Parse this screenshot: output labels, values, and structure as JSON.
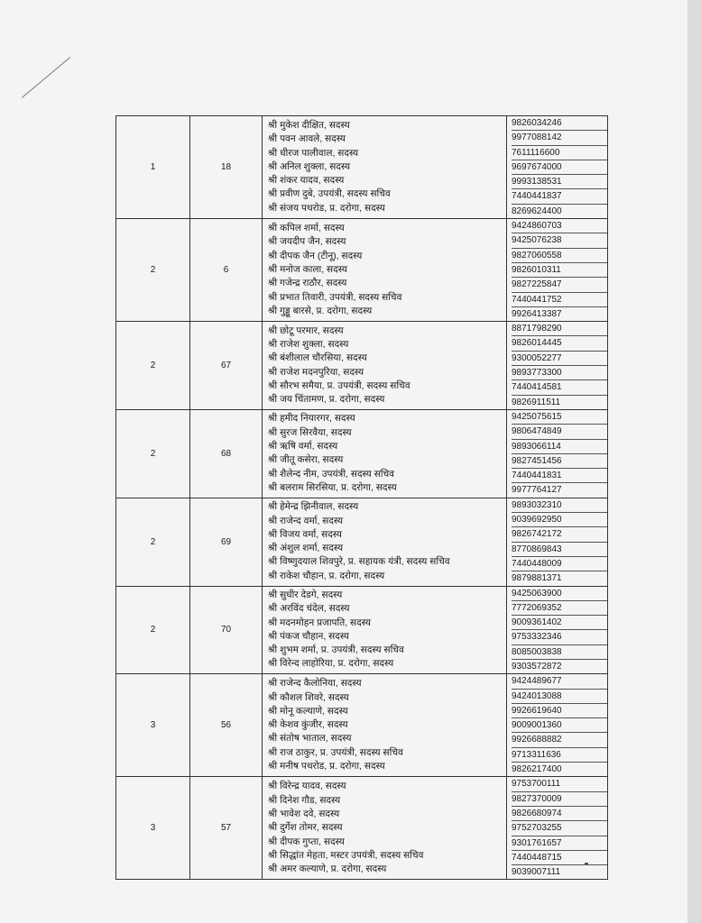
{
  "groups": [
    {
      "col1": "1",
      "col2": "18",
      "members": [
        {
          "name": "श्री मुकेश दीक्षित, सदस्य",
          "phone": "9826034246"
        },
        {
          "name": "श्री पवन आवले, सदस्य",
          "phone": "9977088142"
        },
        {
          "name": "श्री धीरज पालीवाल, सदस्य",
          "phone": "7611116600"
        },
        {
          "name": "श्री अनिल शुक्ला, सदस्य",
          "phone": "9697674000"
        },
        {
          "name": "श्री शंकर यादव, सदस्य",
          "phone": "9993138531"
        },
        {
          "name": "श्री प्रवीण दुबे, उपयंत्री, सदस्य सचिव",
          "phone": "7440441837"
        },
        {
          "name": "श्री संजय पथरोड, प्र. दरोगा, सदस्य",
          "phone": "8269624400"
        }
      ]
    },
    {
      "col1": "2",
      "col2": "6",
      "members": [
        {
          "name": "श्री कपिल शर्मा, सदस्य",
          "phone": "9424860703"
        },
        {
          "name": "श्री जयदीप जैन, सदस्य",
          "phone": "9425076238"
        },
        {
          "name": "श्री दीपक जैन (टीनू), सदस्य",
          "phone": "9827060558"
        },
        {
          "name": "श्री मनोज काला, सदस्य",
          "phone": "9826010311"
        },
        {
          "name": "श्री गजेन्द्र राठौर, सदस्य",
          "phone": "9827225847"
        },
        {
          "name": "श्री प्रभात तिवारी, उपयंत्री, सदस्य सचिव",
          "phone": "7440441752"
        },
        {
          "name": "श्री गुड्डू बारसे, प्र. दरोगा, सदस्य",
          "phone": "9926413387"
        }
      ]
    },
    {
      "col1": "2",
      "col2": "67",
      "members": [
        {
          "name": "श्री छोटू परमार, सदस्य",
          "phone": "8871798290"
        },
        {
          "name": "श्री राजेश शुक्ला, सदस्य",
          "phone": "9826014445"
        },
        {
          "name": "श्री बंशीलाल चौरसिया, सदस्य",
          "phone": "9300052277"
        },
        {
          "name": "श्री राजेश मदनपुरिया, सदस्य",
          "phone": "9893773300"
        },
        {
          "name": "श्री सौरभ समैया, प्र. उपयंत्री, सदस्य सचिव",
          "phone": "7440414581"
        },
        {
          "name": "श्री जय चिंतामण, प्र. दरोगा, सदस्य",
          "phone": "9826911511"
        }
      ]
    },
    {
      "col1": "2",
      "col2": "68",
      "members": [
        {
          "name": "श्री हमीद नियारगर, सदस्य",
          "phone": "9425075615"
        },
        {
          "name": "श्री सुरज सिरवैया, सदस्य",
          "phone": "9806474849"
        },
        {
          "name": "श्री ऋषि वर्मा, सदस्य",
          "phone": "9893066114"
        },
        {
          "name": "श्री जीतू कसेरा, सदस्य",
          "phone": "9827451456"
        },
        {
          "name": "श्री शैलेन्द नीम, उपयंत्री, सदस्य सचिव",
          "phone": "7440441831"
        },
        {
          "name": "श्री बलराम सिरसिया, प्र. दरोगा, सदस्य",
          "phone": "9977764127"
        }
      ]
    },
    {
      "col1": "2",
      "col2": "69",
      "members": [
        {
          "name": "श्री हेमेन्द्र झिनीवाल, सदस्य",
          "phone": "9893032310"
        },
        {
          "name": "श्री राजेन्द वर्मा, सदस्य",
          "phone": "9039692950"
        },
        {
          "name": "श्री विजय वर्मा, सदस्य",
          "phone": "9826742172"
        },
        {
          "name": "श्री अंशुल शर्मा, सदस्य",
          "phone": "8770869843"
        },
        {
          "name": "श्री विष्णुदयाल शिवपुरे, प्र. सहायक यंत्री, सदस्य सचिव",
          "phone": "7440448009"
        },
        {
          "name": "श्री राकेश चौहान, प्र. दरोगा, सदस्य",
          "phone": "9879881371"
        }
      ]
    },
    {
      "col1": "2",
      "col2": "70",
      "members": [
        {
          "name": "श्री सुधीर देडगे, सदस्य",
          "phone": "9425063900"
        },
        {
          "name": "श्री अरविंद चंदेल, सदस्य",
          "phone": "7772069352"
        },
        {
          "name": "श्री मदनमोहन प्रजापति, सदस्य",
          "phone": "9009361402"
        },
        {
          "name": "श्री पंकज चौहान, सदस्य",
          "phone": "9753332346"
        },
        {
          "name": "श्री शुभम शर्मा, प्र. उपयंत्री, सदस्य सचिव",
          "phone": "8085003838"
        },
        {
          "name": "श्री विरेन्द लाहोरिया, प्र. दरोगा, सदस्य",
          "phone": "9303572872"
        }
      ]
    },
    {
      "col1": "3",
      "col2": "56",
      "members": [
        {
          "name": "श्री राजेन्द कैलोनिया, सदस्य",
          "phone": "9424489677"
        },
        {
          "name": "श्री कौशल शिवरे, सदस्य",
          "phone": "9424013088"
        },
        {
          "name": "श्री मोनू कल्याणे, सदस्य",
          "phone": "9926619640"
        },
        {
          "name": "श्री केशव कुंजीर, सदस्य",
          "phone": "9009001360"
        },
        {
          "name": "श्री संतोष भाताल, सदस्य",
          "phone": "9926688882"
        },
        {
          "name": "श्री राज ठाकुर, प्र. उपयंत्री, सदस्य सचिव",
          "phone": "9713311636"
        },
        {
          "name": "श्री मनीष पथरोड, प्र. दरोगा, सदस्य",
          "phone": "9826217400"
        }
      ]
    },
    {
      "col1": "3",
      "col2": "57",
      "members": [
        {
          "name": "श्री विरेन्द्र यादव, सदस्य",
          "phone": "9753700111"
        },
        {
          "name": "श्री दिनेश गौड, सदस्य",
          "phone": "9827370009"
        },
        {
          "name": "श्री भावेश दवे, सदस्य",
          "phone": "9826680974"
        },
        {
          "name": "श्री दुर्गेश तोमर, सदस्य",
          "phone": "9752703255"
        },
        {
          "name": "श्री दीपक गुप्ता, सदस्य",
          "phone": "9301761657"
        },
        {
          "name": "श्री सिद्धांत मेहता, मस्टर उपयंत्री, सदस्य सचिव",
          "phone": "7440448715"
        },
        {
          "name": "श्री अमर कल्याणे, प्र. दरोगा, सदस्य",
          "phone": "9039007111"
        }
      ]
    }
  ]
}
